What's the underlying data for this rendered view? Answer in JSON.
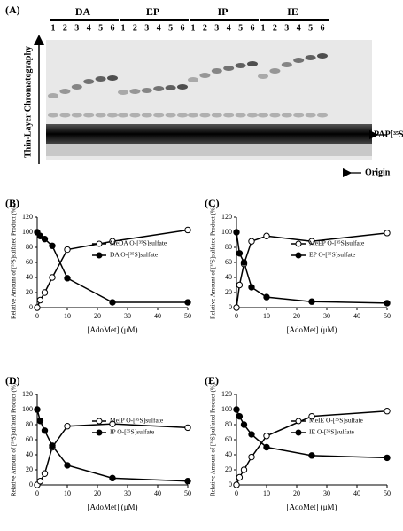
{
  "panel_a": {
    "label": "(A)",
    "axis_label": "Thin-Layer Chromatography",
    "groups": [
      {
        "name": "DA",
        "lanes": [
          "1",
          "2",
          "3",
          "4",
          "5",
          "6"
        ]
      },
      {
        "name": "EP",
        "lanes": [
          "1",
          "2",
          "3",
          "4",
          "5",
          "6"
        ]
      },
      {
        "name": "IP",
        "lanes": [
          "1",
          "2",
          "3",
          "4",
          "5",
          "6"
        ]
      },
      {
        "name": "IE",
        "lanes": [
          "1",
          "2",
          "3",
          "4",
          "5",
          "6"
        ]
      }
    ],
    "markers": [
      "PAP[³⁵S]",
      "Origin"
    ]
  },
  "chart_data": [
    {
      "type": "line",
      "label": "(B)",
      "x_label": "[AdoMet] (μM)",
      "y_label": "Relative Amount of [³⁵S]sulfated Product (%)",
      "x": [
        0,
        1,
        2.5,
        5,
        10,
        25,
        50
      ],
      "xlim": [
        0,
        50
      ],
      "xticks": [
        0,
        10,
        20,
        30,
        40,
        50
      ],
      "ylim": [
        0,
        120
      ],
      "yticks": [
        0,
        20,
        40,
        60,
        80,
        100,
        120
      ],
      "series": [
        {
          "name": "MeDA O-[³⁵S]sulfate",
          "color": "#000000",
          "fill": "#ffffff",
          "values": [
            0,
            10,
            20,
            40,
            77,
            88,
            103
          ]
        },
        {
          "name": "DA O-[³⁵S]sulfate",
          "color": "#000000",
          "fill": "#000000",
          "values": [
            100,
            95,
            91,
            82,
            39,
            7,
            7
          ]
        }
      ]
    },
    {
      "type": "line",
      "label": "(C)",
      "x_label": "[AdoMet] (μM)",
      "y_label": "Relative Amount of [³⁵S]sulfated Product (%)",
      "x": [
        0,
        1,
        2.5,
        5,
        10,
        25,
        50
      ],
      "xlim": [
        0,
        50
      ],
      "xticks": [
        0,
        10,
        20,
        30,
        40,
        50
      ],
      "ylim": [
        0,
        120
      ],
      "yticks": [
        0,
        20,
        40,
        60,
        80,
        100,
        120
      ],
      "series": [
        {
          "name": "MeEP O-[³⁵S]sulfate",
          "color": "#000000",
          "fill": "#ffffff",
          "values": [
            0,
            30,
            58,
            88,
            95,
            88,
            99
          ]
        },
        {
          "name": "EP O-[³⁵S]sulfate",
          "color": "#000000",
          "fill": "#000000",
          "values": [
            100,
            72,
            60,
            27,
            14,
            8,
            6
          ]
        }
      ]
    },
    {
      "type": "line",
      "label": "(D)",
      "x_label": "[AdoMet] (μM)",
      "y_label": "Relative Amount of [³⁵S]sulfated Product (%)",
      "x": [
        0,
        1,
        2.5,
        5,
        10,
        25,
        50
      ],
      "xlim": [
        0,
        50
      ],
      "xticks": [
        0,
        10,
        20,
        30,
        40,
        50
      ],
      "ylim": [
        0,
        120
      ],
      "yticks": [
        0,
        20,
        40,
        60,
        80,
        100,
        120
      ],
      "series": [
        {
          "name": "MeIP O-[³⁵S]sulfate",
          "color": "#000000",
          "fill": "#ffffff",
          "values": [
            0,
            5,
            15,
            50,
            78,
            81,
            76
          ]
        },
        {
          "name": "IP O-[³⁵S]sulfate",
          "color": "#000000",
          "fill": "#000000",
          "values": [
            100,
            85,
            72,
            52,
            26,
            9,
            5
          ]
        }
      ]
    },
    {
      "type": "line",
      "label": "(E)",
      "x_label": "[AdoMet] (μM)",
      "y_label": "Relative Amount of [³⁵S]sulfated Product (%)",
      "x": [
        0,
        1,
        2.5,
        5,
        10,
        25,
        50
      ],
      "xlim": [
        0,
        50
      ],
      "xticks": [
        0,
        10,
        20,
        30,
        40,
        50
      ],
      "ylim": [
        0,
        120
      ],
      "yticks": [
        0,
        20,
        40,
        60,
        80,
        100,
        120
      ],
      "series": [
        {
          "name": "MeIE O-[³⁵S]sulfate",
          "color": "#000000",
          "fill": "#ffffff",
          "values": [
            0,
            10,
            20,
            37,
            65,
            91,
            98
          ]
        },
        {
          "name": "IE O-[³⁵S]sulfate",
          "color": "#000000",
          "fill": "#000000",
          "values": [
            100,
            91,
            80,
            67,
            50,
            39,
            36
          ]
        }
      ]
    }
  ]
}
